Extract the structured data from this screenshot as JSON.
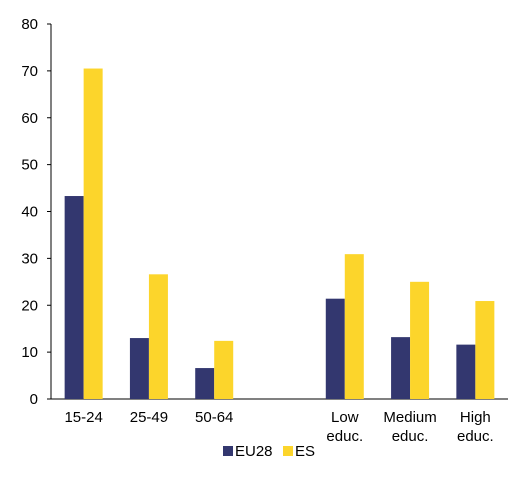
{
  "chart_data": {
    "type": "bar",
    "categories": [
      "15-24",
      "25-49",
      "50-64",
      "",
      "Low educ.",
      "Medium educ.",
      "High educ."
    ],
    "category_lines": [
      [
        "15-24"
      ],
      [
        "25-49"
      ],
      [
        "50-64"
      ],
      [],
      [
        "Low",
        "educ."
      ],
      [
        "Medium",
        "educ."
      ],
      [
        "High",
        "educ."
      ]
    ],
    "series": [
      {
        "name": "EU28",
        "values": [
          43.3,
          13.0,
          6.6,
          null,
          21.4,
          13.2,
          11.6
        ],
        "color": "#33376f"
      },
      {
        "name": "ES",
        "values": [
          70.5,
          26.6,
          12.4,
          null,
          30.9,
          25.0,
          20.9
        ],
        "color": "#fcd52b"
      }
    ],
    "yticks": [
      0,
      10,
      20,
      30,
      40,
      50,
      60,
      70,
      80
    ],
    "ylim": [
      0,
      80
    ],
    "grid": false,
    "legend_position": "bottom-center",
    "title": "",
    "xlabel": "",
    "ylabel": ""
  }
}
